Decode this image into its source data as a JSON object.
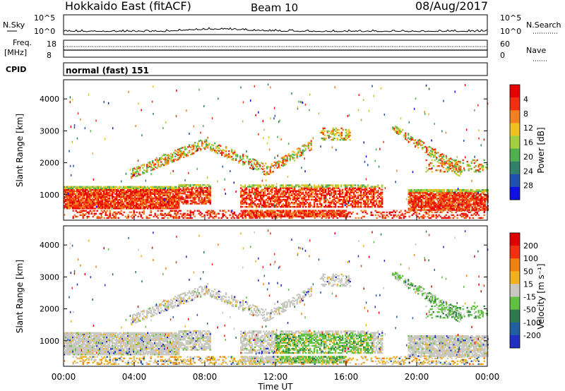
{
  "header": {
    "radar": "Hokkaido East (fitACF)",
    "beam": "Beam 10",
    "date": "08/Aug/2017"
  },
  "top_panels": {
    "nsky_label": "N.Sky",
    "nsky_ticks": [
      "10^5",
      "10^0"
    ],
    "nsearch_label": "N.Search",
    "freq_label": "Freq.",
    "freq_unit": "[MHz]",
    "freq_ticks": [
      "18",
      "8"
    ],
    "nave_ticks": [
      "60",
      "0"
    ],
    "nave_label": "Nave",
    "cpid_label": "CPID",
    "cpid_text": "normal (fast) 151"
  },
  "chart_data": [
    {
      "type": "heatmap",
      "name": "power",
      "ylabel": "Slant Range [km]",
      "ylim": [
        200,
        4600
      ],
      "yticks": [
        "1000",
        "2000",
        "3000",
        "4000"
      ],
      "x_ticks": [
        "00:00",
        "04:00",
        "08:00",
        "12:00",
        "16:00",
        "20:00",
        "00:00"
      ],
      "colorbar": {
        "label": "Power [dB]",
        "ticks": [
          "4",
          "8",
          "12",
          "16",
          "20",
          "24",
          "28"
        ],
        "colors": [
          "#1010e0",
          "#2050b0",
          "#30806a",
          "#50b050",
          "#a0d040",
          "#f0c020",
          "#f08020",
          "#f03010",
          "#e80000"
        ]
      }
    },
    {
      "type": "heatmap",
      "name": "velocity",
      "ylabel": "Slant Range [km]",
      "ylim": [
        200,
        4600
      ],
      "yticks": [
        "1000",
        "2000",
        "3000",
        "4000"
      ],
      "x_ticks": [
        "00:00",
        "04:00",
        "08:00",
        "12:00",
        "16:00",
        "20:00",
        "00:00"
      ],
      "xlabel": "Time UT",
      "colorbar": {
        "label": "Velocity [m s⁻¹]",
        "ticks": [
          "200",
          "100",
          "50",
          "15",
          "-15",
          "-50",
          "-100",
          "-200"
        ],
        "colors": [
          "#2030c0",
          "#2060a0",
          "#307850",
          "#60c040",
          "#c8c8c0",
          "#f0b020",
          "#f08010",
          "#f03010",
          "#e00000"
        ]
      }
    }
  ]
}
